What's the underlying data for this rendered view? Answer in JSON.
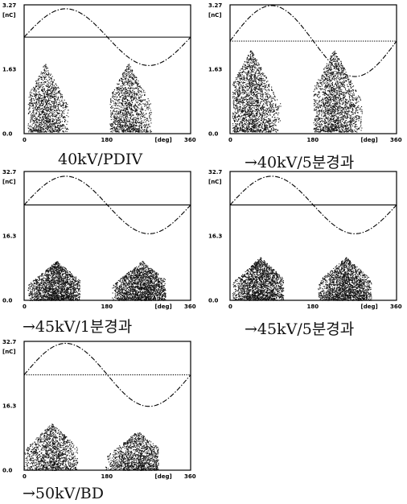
{
  "figure": {
    "panels": [
      {
        "caption": "40kV/PDIV",
        "chart_data": {
          "type": "scatter",
          "title": "",
          "xlabel": "[deg]",
          "ylabel": "[nC]",
          "xlim": [
            0,
            360
          ],
          "ylim": [
            0,
            3.27
          ],
          "x_ticks": [
            "0",
            "180",
            "[deg]",
            "360"
          ],
          "y_ticks": [
            "3.27",
            "1.63",
            "0.0"
          ],
          "y_unit_label": "[nC]",
          "reference_line": {
            "level": 2.45,
            "style": "solid"
          },
          "sine_reference": {
            "center": 2.45,
            "amplitude": 0.72,
            "style": "dash-dot"
          },
          "clusters": [
            {
              "phase_range": [
                8,
                95
              ],
              "charge_range": [
                0.05,
                1.75
              ],
              "peak_phase": 45,
              "density": "medium"
            },
            {
              "phase_range": [
                185,
                275
              ],
              "charge_range": [
                0.05,
                1.75
              ],
              "peak_phase": 225,
              "density": "medium"
            }
          ]
        }
      },
      {
        "caption": "→40kV/5분경과",
        "chart_data": {
          "type": "scatter",
          "title": "",
          "xlabel": "[deg]",
          "ylabel": "[nC]",
          "xlim": [
            0,
            360
          ],
          "ylim": [
            0,
            3.27
          ],
          "x_ticks": [
            "0",
            "180",
            "[deg]",
            "360"
          ],
          "y_ticks": [
            "3.27",
            "1.63",
            "0.0"
          ],
          "y_unit_label": "[nC]",
          "reference_line": {
            "level": 2.35,
            "style": "dotted"
          },
          "sine_reference": {
            "center": 2.35,
            "amplitude": 0.9,
            "style": "dash-dot"
          },
          "clusters": [
            {
              "phase_range": [
                5,
                110
              ],
              "charge_range": [
                0.05,
                2.1
              ],
              "peak_phase": 45,
              "density": "high"
            },
            {
              "phase_range": [
                180,
                285
              ],
              "charge_range": [
                0.05,
                2.1
              ],
              "peak_phase": 225,
              "density": "high"
            }
          ]
        }
      },
      {
        "caption": "→45kV/1분경과",
        "chart_data": {
          "type": "scatter",
          "title": "",
          "xlabel": "[deg]",
          "ylabel": "[nC]",
          "xlim": [
            0,
            360
          ],
          "ylim": [
            0,
            32.7
          ],
          "x_ticks": [
            "0",
            "180",
            "[deg]",
            "360"
          ],
          "y_ticks": [
            "32.7",
            "16.3",
            "0.0"
          ],
          "y_unit_label": "[nC]",
          "reference_line": {
            "level": 24.2,
            "style": "solid"
          },
          "sine_reference": {
            "center": 24.2,
            "amplitude": 7.3,
            "style": "dash-dot"
          },
          "clusters": [
            {
              "phase_range": [
                8,
                120
              ],
              "charge_range": [
                0.05,
                10.0
              ],
              "peak_phase": 70,
              "density": "high"
            },
            {
              "phase_range": [
                190,
                305
              ],
              "charge_range": [
                0.05,
                10.0
              ],
              "peak_phase": 255,
              "density": "high"
            }
          ]
        }
      },
      {
        "caption": "→45kV/5분경과",
        "chart_data": {
          "type": "scatter",
          "title": "",
          "xlabel": "[deg]",
          "ylabel": "[nC]",
          "xlim": [
            0,
            360
          ],
          "ylim": [
            0,
            32.7
          ],
          "x_ticks": [
            "0",
            "180",
            "[deg]",
            "360"
          ],
          "y_ticks": [
            "32.7",
            "16.3",
            "0.0"
          ],
          "y_unit_label": "[nC]",
          "reference_line": {
            "level": 24.2,
            "style": "solid"
          },
          "sine_reference": {
            "center": 24.2,
            "amplitude": 7.3,
            "style": "dash-dot"
          },
          "clusters": [
            {
              "phase_range": [
                5,
                115
              ],
              "charge_range": [
                0.05,
                11.0
              ],
              "peak_phase": 65,
              "density": "high"
            },
            {
              "phase_range": [
                190,
                305
              ],
              "charge_range": [
                0.05,
                11.0
              ],
              "peak_phase": 250,
              "density": "high"
            }
          ]
        }
      },
      {
        "caption": "→50kV/BD",
        "chart_data": {
          "type": "scatter",
          "title": "",
          "xlabel": "[deg]",
          "ylabel": "[nC]",
          "xlim": [
            0,
            360
          ],
          "ylim": [
            0,
            32.7
          ],
          "x_ticks": [
            "0",
            "180",
            "[deg]",
            "360"
          ],
          "y_ticks": [
            "32.7",
            "16.3",
            "0.0"
          ],
          "y_unit_label": "[nC]",
          "reference_line": {
            "level": 24.2,
            "style": "dotted"
          },
          "sine_reference": {
            "center": 24.2,
            "amplitude": 8.0,
            "style": "dash-dot"
          },
          "clusters": [
            {
              "phase_range": [
                0,
                115
              ],
              "charge_range": [
                0.05,
                12.0
              ],
              "peak_phase": 60,
              "density": "medium"
            },
            {
              "phase_range": [
                175,
                290
              ],
              "charge_range": [
                0.05,
                10.0
              ],
              "peak_phase": 245,
              "density": "medium"
            }
          ]
        }
      }
    ]
  }
}
